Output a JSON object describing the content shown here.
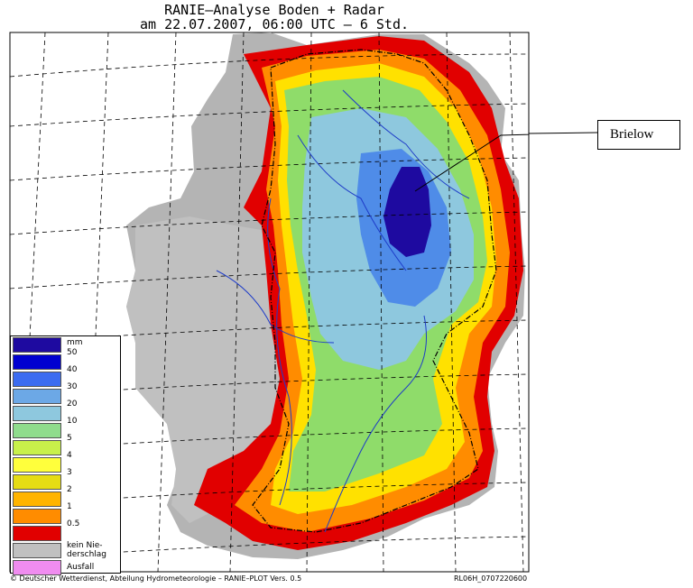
{
  "header": {
    "title_line1": "RANIE–Analyse Boden + Radar",
    "title_line2": "am 22.07.2007, 06:00 UTC – 6 Std."
  },
  "callout": {
    "label": "Brielow"
  },
  "legend": {
    "unit": "mm",
    "items": [
      {
        "label": "50",
        "color": "#0000d0"
      },
      {
        "label": "40",
        "color": "#3c6cf0"
      },
      {
        "label": "30",
        "color": "#6ca8e6"
      },
      {
        "label": "20",
        "color": "#8ec8de"
      },
      {
        "label": "10",
        "color": "#8fdc8c"
      },
      {
        "label": "5",
        "color": "#c8f04a"
      },
      {
        "label": "4",
        "color": "#ffff3c"
      },
      {
        "label": "3",
        "color": "#e6dc14"
      },
      {
        "label": "2",
        "color": "#ffb400"
      },
      {
        "label": "1",
        "color": "#ff8c00"
      },
      {
        "label": "0.5",
        "color": "#ff5a00"
      },
      {
        "label_line1": "kein Nie-",
        "label_line2": "derschlag",
        "color": "#e10000"
      },
      {
        "label": "Ausfall",
        "color": "#c0c0c0"
      }
    ],
    "extra_swatch_color": "#f08cf0",
    "top_swatch_color": "#1e0aa0"
  },
  "footer": {
    "left": "© Deutscher Wetterdienst, Abteilung Hydrometeorologie – RANIE–PLOT Vers. 0.5",
    "right": "RL06H_0707220600"
  }
}
